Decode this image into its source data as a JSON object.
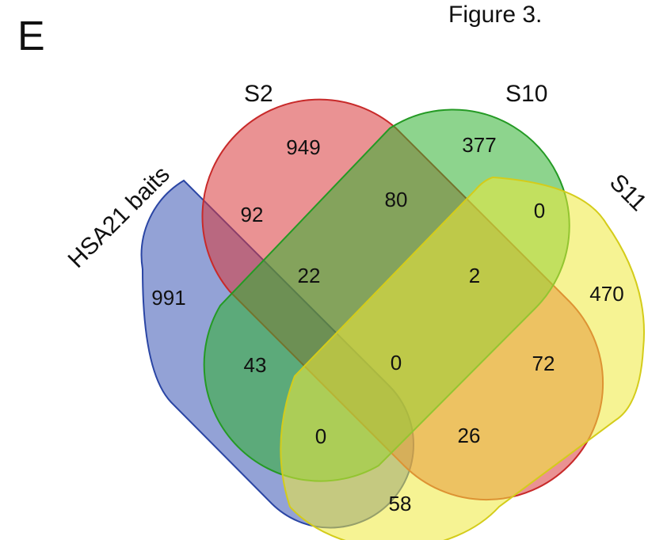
{
  "figure_caption": "Figure 3.",
  "panel_letter": "E",
  "sets": {
    "hsa21": {
      "label": "HSA21 baits",
      "color": "#3a55b4"
    },
    "s2": {
      "label": "S2",
      "color": "#d9383b"
    },
    "s10": {
      "label": "S10",
      "color": "#2fb12f"
    },
    "s11": {
      "label": "S11",
      "color": "#eeea3a"
    }
  },
  "regions": {
    "hsa21_only": "991",
    "s2_only": "949",
    "s10_only": "377",
    "s11_only": "470",
    "hsa21_s2": "92",
    "s2_s10": "80",
    "s10_s11": "0",
    "hsa21_s2_s10": "22",
    "s2_s10_s11": "2",
    "hsa21_s10": "43",
    "all_four": "0",
    "s2_s11": "72",
    "hsa21_s10_s11": "0",
    "hsa21_s2_s11": "26",
    "hsa21_s11": "58"
  }
}
